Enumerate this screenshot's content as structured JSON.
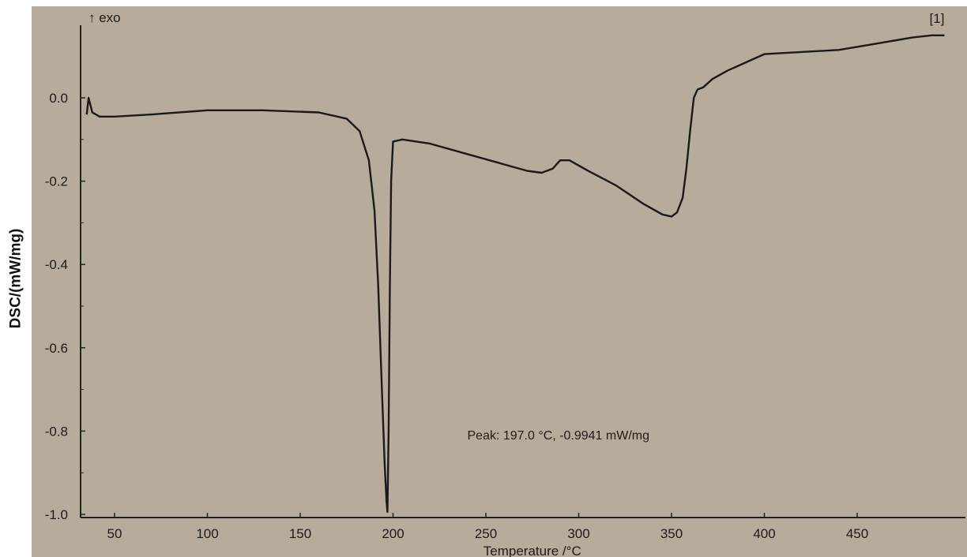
{
  "chart_data": {
    "type": "line",
    "title": "",
    "xlabel": "Temperature /°C",
    "ylabel": "DSC/(mW/mg)",
    "xlim": [
      35,
      500
    ],
    "ylim": [
      -1.0,
      0.2
    ],
    "x_ticks": [
      50,
      100,
      150,
      200,
      250,
      300,
      350,
      400,
      450
    ],
    "y_ticks": [
      0.0,
      -0.2,
      -0.4,
      -0.6,
      -0.8,
      -1.0
    ],
    "x_tick_labels": [
      "50",
      "100",
      "150",
      "200",
      "250",
      "300",
      "350",
      "400",
      "450"
    ],
    "y_tick_labels": [
      "0.0",
      "-0.2",
      "-0.4",
      "-0.6",
      "-0.8",
      "-1.0"
    ],
    "grid": false,
    "series": [
      {
        "color": "#1a1a1a",
        "x": [
          35,
          36,
          38,
          42,
          50,
          70,
          100,
          130,
          160,
          175,
          182,
          187,
          190,
          192,
          194,
          195.5,
          196.5,
          197.0,
          197.6,
          198.3,
          199,
          200,
          205,
          220,
          240,
          260,
          272,
          280,
          286,
          290,
          295,
          305,
          320,
          335,
          345,
          350,
          353,
          356,
          358,
          360,
          362,
          364,
          367,
          372,
          380,
          390,
          400,
          420,
          440,
          460,
          480,
          490,
          497
        ],
        "y": [
          -0.04,
          0.0,
          -0.035,
          -0.045,
          -0.045,
          -0.04,
          -0.03,
          -0.03,
          -0.035,
          -0.05,
          -0.08,
          -0.15,
          -0.27,
          -0.45,
          -0.7,
          -0.88,
          -0.97,
          -0.994,
          -0.8,
          -0.45,
          -0.2,
          -0.105,
          -0.1,
          -0.11,
          -0.135,
          -0.16,
          -0.175,
          -0.18,
          -0.17,
          -0.15,
          -0.15,
          -0.175,
          -0.21,
          -0.255,
          -0.28,
          -0.285,
          -0.275,
          -0.24,
          -0.17,
          -0.08,
          0.0,
          0.02,
          0.025,
          0.045,
          0.065,
          0.085,
          0.105,
          0.11,
          0.115,
          0.13,
          0.145,
          0.15,
          0.15
        ]
      }
    ],
    "annotations": [
      {
        "text": "Peak: 197.0 °C, -0.9941 mW/mg",
        "x": 240,
        "y": -0.82
      },
      {
        "text": "[1]",
        "x": 497,
        "y": 0.18
      }
    ],
    "exo_label": "↑ exo"
  }
}
